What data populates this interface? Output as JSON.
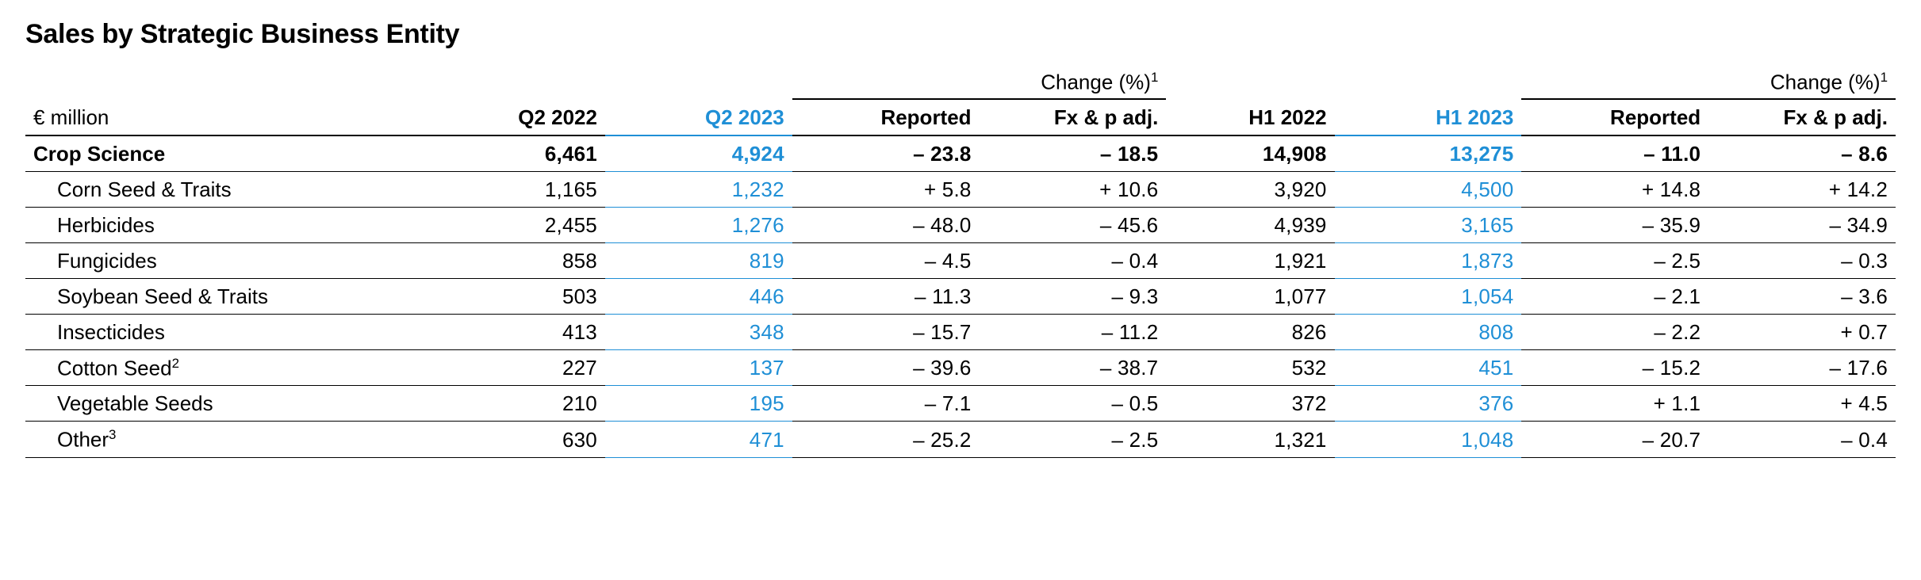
{
  "title": "Sales by Strategic Business Entity",
  "unit_label": "€ million",
  "group_label": "Change (%)",
  "group_sup": "1",
  "columns": {
    "c1": "Q2 2022",
    "c2": "Q2 2023",
    "c3": "Reported",
    "c4": "Fx & p adj.",
    "c5": "H1 2022",
    "c6": "H1 2023",
    "c7": "Reported",
    "c8": "Fx & p adj."
  },
  "highlight_columns": [
    "c2",
    "c6"
  ],
  "colors": {
    "text": "#000000",
    "accent": "#1f8fd6",
    "background": "#ffffff"
  },
  "column_widths_pct": [
    22,
    9,
    10,
    10,
    10,
    9,
    10,
    10,
    10
  ],
  "rows": [
    {
      "label": "Crop Science",
      "sup": "",
      "bold": true,
      "indent": false,
      "c1": "6,461",
      "c2": "4,924",
      "c3": "– 23.8",
      "c4": "– 18.5",
      "c5": "14,908",
      "c6": "13,275",
      "c7": "– 11.0",
      "c8": "– 8.6"
    },
    {
      "label": "Corn Seed & Traits",
      "sup": "",
      "bold": false,
      "indent": true,
      "c1": "1,165",
      "c2": "1,232",
      "c3": "+ 5.8",
      "c4": "+ 10.6",
      "c5": "3,920",
      "c6": "4,500",
      "c7": "+ 14.8",
      "c8": "+ 14.2"
    },
    {
      "label": "Herbicides",
      "sup": "",
      "bold": false,
      "indent": true,
      "c1": "2,455",
      "c2": "1,276",
      "c3": "– 48.0",
      "c4": "– 45.6",
      "c5": "4,939",
      "c6": "3,165",
      "c7": "– 35.9",
      "c8": "– 34.9"
    },
    {
      "label": "Fungicides",
      "sup": "",
      "bold": false,
      "indent": true,
      "c1": "858",
      "c2": "819",
      "c3": "– 4.5",
      "c4": "– 0.4",
      "c5": "1,921",
      "c6": "1,873",
      "c7": "– 2.5",
      "c8": "– 0.3"
    },
    {
      "label": "Soybean Seed & Traits",
      "sup": "",
      "bold": false,
      "indent": true,
      "c1": "503",
      "c2": "446",
      "c3": "– 11.3",
      "c4": "– 9.3",
      "c5": "1,077",
      "c6": "1,054",
      "c7": "– 2.1",
      "c8": "– 3.6"
    },
    {
      "label": "Insecticides",
      "sup": "",
      "bold": false,
      "indent": true,
      "c1": "413",
      "c2": "348",
      "c3": "– 15.7",
      "c4": "– 11.2",
      "c5": "826",
      "c6": "808",
      "c7": "– 2.2",
      "c8": "+ 0.7"
    },
    {
      "label": "Cotton Seed",
      "sup": "2",
      "bold": false,
      "indent": true,
      "c1": "227",
      "c2": "137",
      "c3": "– 39.6",
      "c4": "– 38.7",
      "c5": "532",
      "c6": "451",
      "c7": "– 15.2",
      "c8": "– 17.6"
    },
    {
      "label": "Vegetable Seeds",
      "sup": "",
      "bold": false,
      "indent": true,
      "c1": "210",
      "c2": "195",
      "c3": "– 7.1",
      "c4": "– 0.5",
      "c5": "372",
      "c6": "376",
      "c7": "+ 1.1",
      "c8": "+ 4.5"
    },
    {
      "label": "Other",
      "sup": "3",
      "bold": false,
      "indent": true,
      "c1": "630",
      "c2": "471",
      "c3": "– 25.2",
      "c4": "– 2.5",
      "c5": "1,321",
      "c6": "1,048",
      "c7": "– 20.7",
      "c8": "– 0.4"
    }
  ]
}
